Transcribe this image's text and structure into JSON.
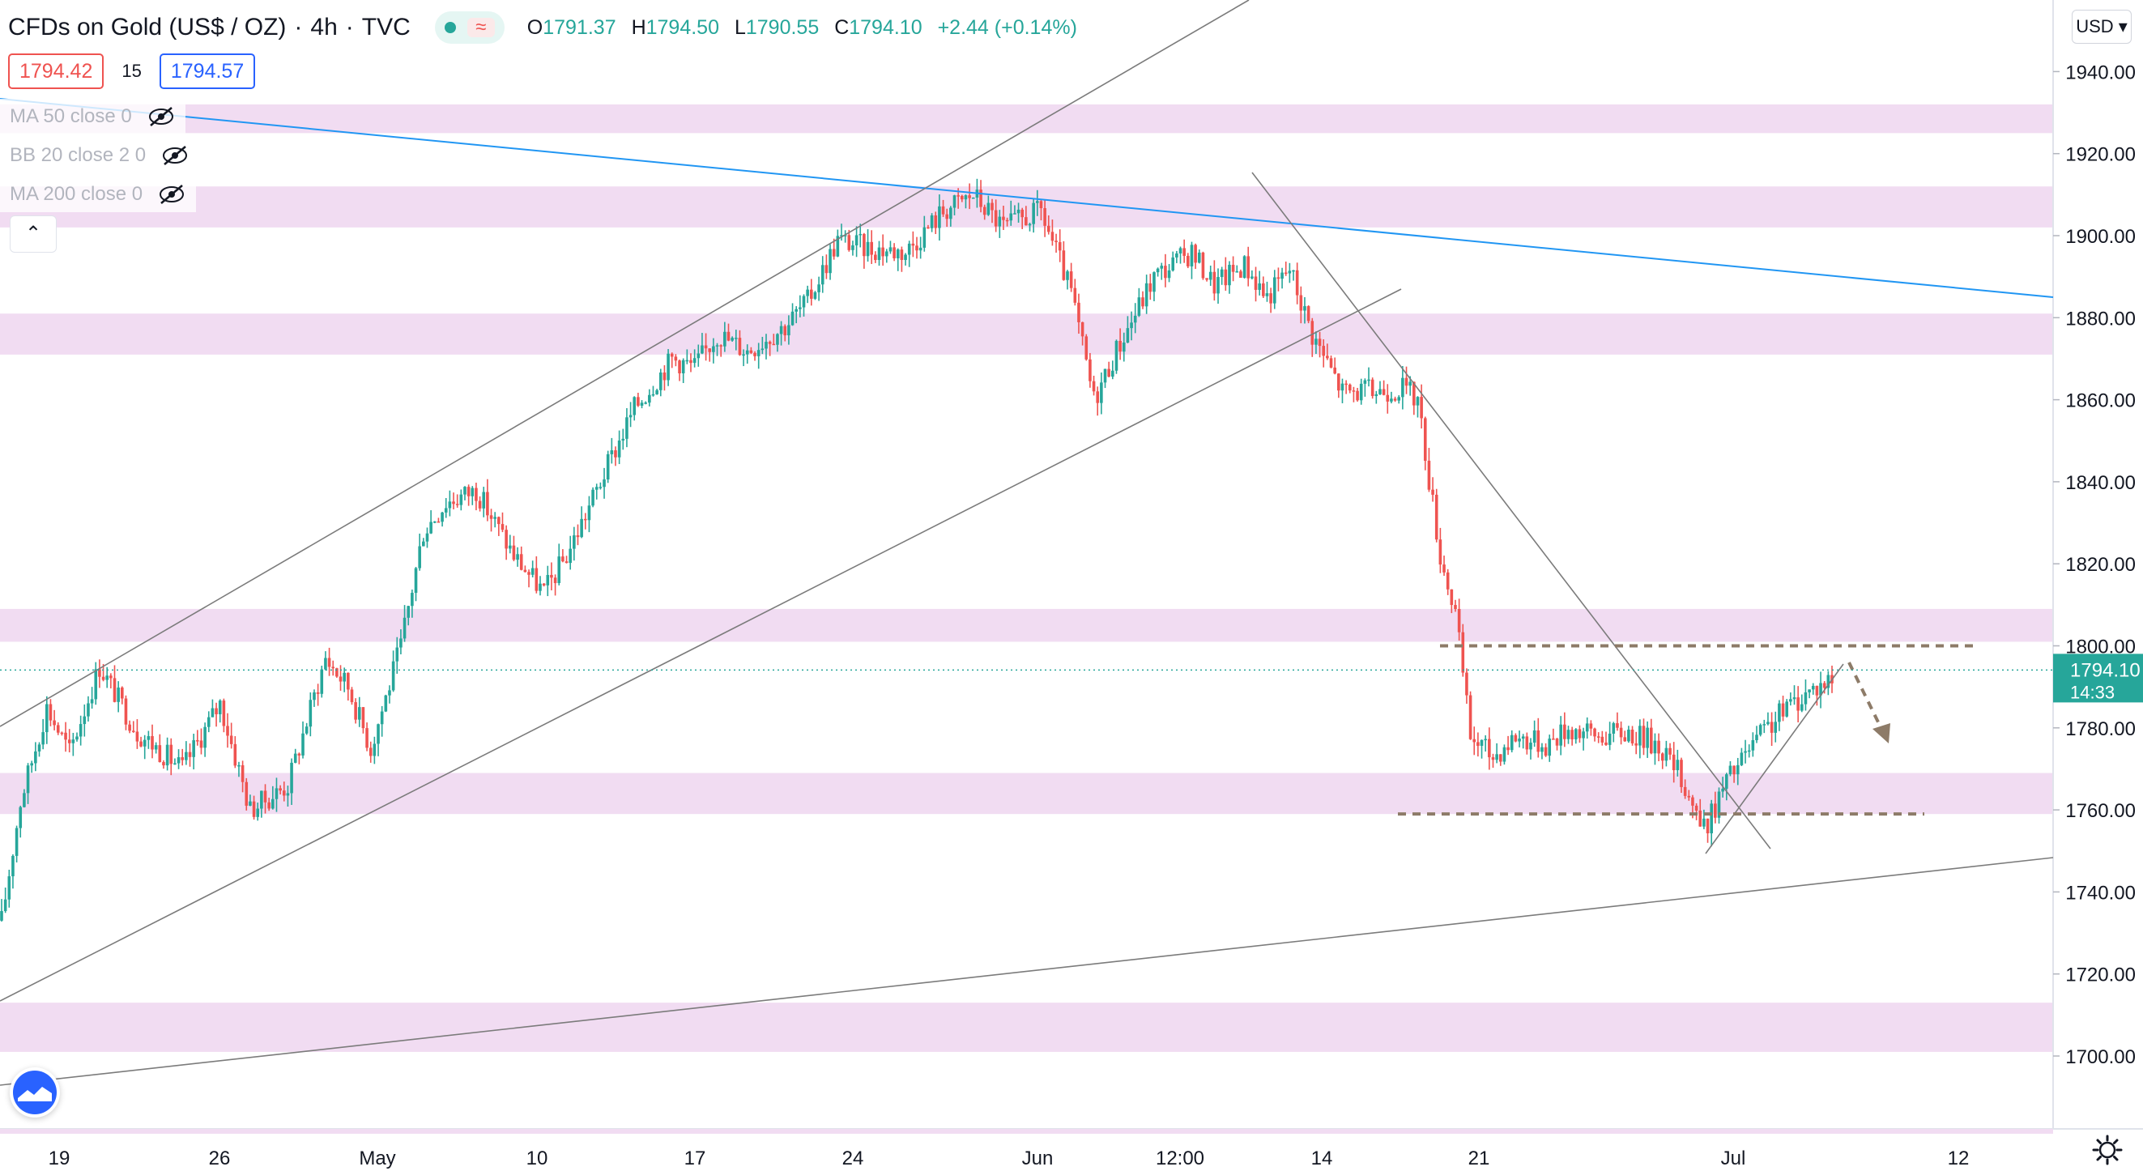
{
  "header": {
    "title": "CFDs on Gold (US$ / OZ)",
    "interval": "4h",
    "source": "TVC",
    "ohlc": {
      "o_label": "O",
      "o": "1791.37",
      "h_label": "H",
      "h": "1794.50",
      "l_label": "L",
      "l": "1790.55",
      "c_label": "C",
      "c": "1794.10",
      "change": "+2.44 (+0.14%)"
    }
  },
  "quote": {
    "bid": "1794.42",
    "spread": "15",
    "ask": "1794.57"
  },
  "indicators": [
    {
      "label": "MA 50 close 0",
      "icon": "eye-off-icon"
    },
    {
      "label": "BB 20 close 2 0",
      "icon": "eye-off-icon"
    },
    {
      "label": "MA 200 close 0",
      "icon": "eye-off-icon"
    }
  ],
  "collapse_icon": "chevron-up-icon",
  "currency": "USD",
  "last_price_tag": {
    "price": "1794.10",
    "countdown": "14:33"
  },
  "colors": {
    "up": "#26a69a",
    "down": "#ef5350",
    "zone": "#e1bee7",
    "trendline": "#2196f3",
    "guide": "#7b7b7b",
    "dashed": "#8d7b68"
  },
  "chart_data": {
    "type": "candlestick",
    "title": "CFDs on Gold (US$ / OZ)",
    "xlabel": "",
    "ylabel": "",
    "ylim": [
      1685,
      1970
    ],
    "y_ticks": [
      "1940.00",
      "1920.00",
      "1900.00",
      "1880.00",
      "1860.00",
      "1840.00",
      "1820.00",
      "1800.00",
      "1780.00",
      "1760.00",
      "1740.00",
      "1720.00",
      "1700.00"
    ],
    "x_ticks": [
      "19",
      "26",
      "May",
      "10",
      "17",
      "24",
      "Jun",
      "12:00",
      "14",
      "21",
      "Jul",
      "12"
    ],
    "grid": false,
    "series": [
      {
        "name": "price_path_anchors",
        "points": [
          [
            0,
            1733
          ],
          [
            5,
            1762
          ],
          [
            12,
            1785
          ],
          [
            18,
            1774
          ],
          [
            26,
            1795
          ],
          [
            36,
            1779
          ],
          [
            48,
            1770
          ],
          [
            58,
            1786
          ],
          [
            66,
            1760
          ],
          [
            76,
            1766
          ],
          [
            86,
            1797
          ],
          [
            92,
            1790
          ],
          [
            98,
            1775
          ],
          [
            106,
            1800
          ],
          [
            112,
            1828
          ],
          [
            118,
            1835
          ],
          [
            126,
            1838
          ],
          [
            136,
            1822
          ],
          [
            144,
            1813
          ],
          [
            150,
            1822
          ],
          [
            160,
            1842
          ],
          [
            168,
            1858
          ],
          [
            178,
            1870
          ],
          [
            184,
            1868
          ],
          [
            190,
            1876
          ],
          [
            198,
            1872
          ],
          [
            208,
            1878
          ],
          [
            214,
            1884
          ],
          [
            222,
            1899
          ],
          [
            230,
            1897
          ],
          [
            240,
            1896
          ],
          [
            250,
            1906
          ],
          [
            258,
            1910
          ],
          [
            266,
            1902
          ],
          [
            276,
            1906
          ],
          [
            284,
            1886
          ],
          [
            290,
            1860
          ],
          [
            296,
            1872
          ],
          [
            306,
            1890
          ],
          [
            316,
            1896
          ],
          [
            322,
            1888
          ],
          [
            330,
            1893
          ],
          [
            336,
            1885
          ],
          [
            342,
            1892
          ],
          [
            348,
            1876
          ],
          [
            356,
            1862
          ],
          [
            364,
            1862
          ],
          [
            372,
            1863
          ],
          [
            376,
            1860
          ],
          [
            382,
            1822
          ],
          [
            386,
            1808
          ],
          [
            390,
            1778
          ],
          [
            396,
            1773
          ],
          [
            402,
            1778
          ],
          [
            410,
            1776
          ],
          [
            416,
            1780
          ],
          [
            424,
            1778
          ],
          [
            432,
            1779
          ],
          [
            440,
            1776
          ],
          [
            446,
            1768
          ],
          [
            452,
            1755
          ],
          [
            458,
            1767
          ],
          [
            466,
            1777
          ],
          [
            474,
            1785
          ],
          [
            480,
            1789
          ],
          [
            486,
            1792
          ]
        ]
      },
      {
        "name": "support_resistance_zones",
        "bands": [
          [
            1925,
            1932
          ],
          [
            1902,
            1912
          ],
          [
            1871,
            1881
          ],
          [
            1801,
            1809
          ],
          [
            1759,
            1769
          ],
          [
            1701,
            1713
          ]
        ]
      },
      {
        "name": "dashed_levels",
        "values": [
          1800,
          1759
        ]
      }
    ]
  }
}
